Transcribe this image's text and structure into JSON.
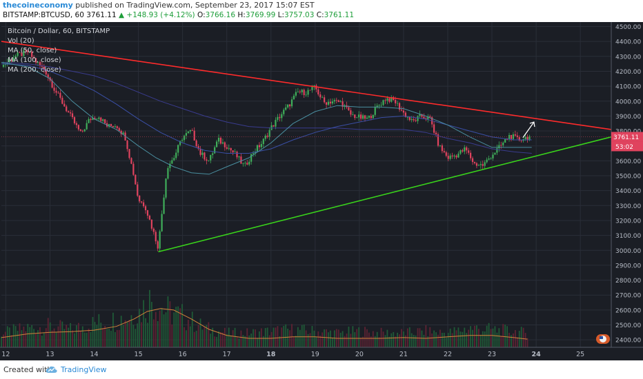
{
  "header": {
    "author": "thecoineconomy",
    "published": "published on TradingView.com, September 23, 2017 15:07 EST",
    "symbol": "BITSTAMP:BTCUSD, 60",
    "last": "3761.11",
    "change": "▲ +148.93 (+4.12%)",
    "o_label": "O:",
    "o": "3766.16",
    "h_label": "H:",
    "h": "3769.99",
    "l_label": "L:",
    "l": "3757.03",
    "c_label": "C:",
    "c": "3761.11"
  },
  "legend": [
    "Bitcoin / Dollar, 60, BITSTAMP",
    "Vol (20)",
    "MA (50, close)",
    "MA (100, close)",
    "MA (200, close)"
  ],
  "price_tag": {
    "value": "3761.11",
    "countdown": "53:02"
  },
  "footer": {
    "created": "Created with",
    "brand": "TradingView"
  },
  "colors": {
    "background": "#1b1e25",
    "up": "#3fae5a",
    "down": "#e0435e",
    "resistance": "#ff2b2b",
    "support": "#39d31b",
    "ma50": "#4a8fa0",
    "ma100": "#3a4fa6",
    "ma200": "#3a3c8f",
    "vol_ma": "#d2823a"
  },
  "chart_data": {
    "type": "candlestick",
    "ylabels": [
      "4500.00",
      "4400.00",
      "4300.00",
      "4200.00",
      "4100.00",
      "4000.00",
      "3900.00",
      "3800.00",
      "3700.00",
      "3600.00",
      "3500.00",
      "3400.00",
      "3300.00",
      "3200.00",
      "3100.00",
      "3000.00",
      "2900.00",
      "2800.00",
      "2700.00",
      "2600.00",
      "2500.00",
      "2400.00"
    ],
    "ylim": [
      2350,
      4530
    ],
    "xlabels": [
      "12",
      "13",
      "14",
      "15",
      "16",
      "17",
      "18",
      "19",
      "20",
      "21",
      "22",
      "23",
      "24",
      "25"
    ],
    "close_path": [
      [
        11.9,
        4230
      ],
      [
        12.2,
        4300
      ],
      [
        12.5,
        4330
      ],
      [
        12.7,
        4260
      ],
      [
        12.9,
        4200
      ],
      [
        13.1,
        4080
      ],
      [
        13.3,
        3980
      ],
      [
        13.5,
        3880
      ],
      [
        13.7,
        3780
      ],
      [
        13.9,
        3880
      ],
      [
        14.1,
        3900
      ],
      [
        14.3,
        3830
      ],
      [
        14.5,
        3840
      ],
      [
        14.7,
        3760
      ],
      [
        14.9,
        3500
      ],
      [
        15.0,
        3340
      ],
      [
        15.15,
        3300
      ],
      [
        15.3,
        3160
      ],
      [
        15.45,
        3020
      ],
      [
        15.55,
        3300
      ],
      [
        15.65,
        3560
      ],
      [
        15.8,
        3620
      ],
      [
        16.0,
        3760
      ],
      [
        16.2,
        3800
      ],
      [
        16.4,
        3650
      ],
      [
        16.6,
        3600
      ],
      [
        16.8,
        3740
      ],
      [
        17.0,
        3700
      ],
      [
        17.2,
        3640
      ],
      [
        17.4,
        3560
      ],
      [
        17.6,
        3660
      ],
      [
        17.8,
        3720
      ],
      [
        18.0,
        3820
      ],
      [
        18.2,
        3900
      ],
      [
        18.4,
        3970
      ],
      [
        18.6,
        4060
      ],
      [
        18.8,
        4060
      ],
      [
        19.0,
        4090
      ],
      [
        19.2,
        3990
      ],
      [
        19.4,
        4000
      ],
      [
        19.6,
        3990
      ],
      [
        19.8,
        3910
      ],
      [
        20.0,
        3890
      ],
      [
        20.2,
        3880
      ],
      [
        20.4,
        3960
      ],
      [
        20.6,
        4020
      ],
      [
        20.8,
        4000
      ],
      [
        21.0,
        3920
      ],
      [
        21.2,
        3860
      ],
      [
        21.4,
        3900
      ],
      [
        21.6,
        3880
      ],
      [
        21.8,
        3700
      ],
      [
        22.0,
        3620
      ],
      [
        22.2,
        3640
      ],
      [
        22.4,
        3680
      ],
      [
        22.6,
        3580
      ],
      [
        22.8,
        3570
      ],
      [
        23.0,
        3640
      ],
      [
        23.2,
        3700
      ],
      [
        23.4,
        3770
      ],
      [
        23.6,
        3740
      ],
      [
        23.8,
        3761
      ]
    ],
    "volume_path": [
      [
        11.9,
        2440
      ],
      [
        12.5,
        2470
      ],
      [
        13.0,
        2480
      ],
      [
        13.5,
        2460
      ],
      [
        14.0,
        2500
      ],
      [
        14.5,
        2520
      ],
      [
        15.0,
        2560
      ],
      [
        15.3,
        2650
      ],
      [
        15.6,
        2580
      ],
      [
        16.0,
        2540
      ],
      [
        16.5,
        2470
      ],
      [
        17.0,
        2440
      ],
      [
        17.5,
        2440
      ],
      [
        18.0,
        2450
      ],
      [
        18.5,
        2460
      ],
      [
        19.0,
        2450
      ],
      [
        19.5,
        2440
      ],
      [
        20.0,
        2450
      ],
      [
        20.5,
        2440
      ],
      [
        21.0,
        2440
      ],
      [
        21.5,
        2450
      ],
      [
        22.0,
        2440
      ],
      [
        22.5,
        2470
      ],
      [
        23.0,
        2460
      ],
      [
        23.5,
        2450
      ],
      [
        23.8,
        2440
      ]
    ],
    "volume_ma": [
      [
        11.9,
        2415
      ],
      [
        12.5,
        2440
      ],
      [
        13.0,
        2450
      ],
      [
        13.5,
        2455
      ],
      [
        14.0,
        2465
      ],
      [
        14.5,
        2490
      ],
      [
        14.9,
        2540
      ],
      [
        15.2,
        2590
      ],
      [
        15.5,
        2610
      ],
      [
        15.8,
        2600
      ],
      [
        16.2,
        2540
      ],
      [
        16.6,
        2470
      ],
      [
        17.0,
        2430
      ],
      [
        17.5,
        2410
      ],
      [
        18.0,
        2410
      ],
      [
        18.5,
        2420
      ],
      [
        19.0,
        2420
      ],
      [
        19.5,
        2410
      ],
      [
        20.0,
        2410
      ],
      [
        20.5,
        2410
      ],
      [
        21.0,
        2415
      ],
      [
        21.5,
        2410
      ],
      [
        22.0,
        2420
      ],
      [
        22.5,
        2430
      ],
      [
        23.0,
        2430
      ],
      [
        23.5,
        2415
      ],
      [
        23.8,
        2405
      ]
    ],
    "ma50": [
      [
        11.9,
        4260
      ],
      [
        12.5,
        4230
      ],
      [
        13.0,
        4150
      ],
      [
        13.5,
        4000
      ],
      [
        14.0,
        3880
      ],
      [
        14.5,
        3810
      ],
      [
        15.0,
        3700
      ],
      [
        15.4,
        3620
      ],
      [
        15.8,
        3560
      ],
      [
        16.2,
        3520
      ],
      [
        16.6,
        3510
      ],
      [
        17.0,
        3560
      ],
      [
        17.5,
        3620
      ],
      [
        18.0,
        3720
      ],
      [
        18.5,
        3850
      ],
      [
        19.0,
        3930
      ],
      [
        19.5,
        3970
      ],
      [
        20.0,
        3960
      ],
      [
        20.5,
        3960
      ],
      [
        21.0,
        3950
      ],
      [
        21.5,
        3900
      ],
      [
        22.0,
        3840
      ],
      [
        22.5,
        3760
      ],
      [
        23.0,
        3690
      ],
      [
        23.5,
        3690
      ],
      [
        23.9,
        3690
      ]
    ],
    "ma100": [
      [
        11.9,
        4250
      ],
      [
        12.5,
        4240
      ],
      [
        13.0,
        4200
      ],
      [
        13.5,
        4140
      ],
      [
        14.0,
        4070
      ],
      [
        14.5,
        3980
      ],
      [
        15.0,
        3880
      ],
      [
        15.5,
        3790
      ],
      [
        16.0,
        3720
      ],
      [
        16.5,
        3670
      ],
      [
        17.0,
        3650
      ],
      [
        17.5,
        3650
      ],
      [
        18.0,
        3680
      ],
      [
        18.5,
        3740
      ],
      [
        19.0,
        3790
      ],
      [
        19.5,
        3830
      ],
      [
        20.0,
        3860
      ],
      [
        20.5,
        3890
      ],
      [
        21.0,
        3900
      ],
      [
        21.5,
        3880
      ],
      [
        22.0,
        3840
      ],
      [
        22.5,
        3800
      ],
      [
        23.0,
        3760
      ],
      [
        23.5,
        3740
      ],
      [
        23.9,
        3740
      ]
    ],
    "ma200": [
      [
        11.9,
        4260
      ],
      [
        12.5,
        4250
      ],
      [
        13.0,
        4230
      ],
      [
        13.5,
        4200
      ],
      [
        14.0,
        4170
      ],
      [
        14.5,
        4120
      ],
      [
        15.0,
        4060
      ],
      [
        15.5,
        4000
      ],
      [
        16.0,
        3950
      ],
      [
        16.5,
        3900
      ],
      [
        17.0,
        3860
      ],
      [
        17.5,
        3830
      ],
      [
        18.0,
        3820
      ],
      [
        18.5,
        3820
      ],
      [
        19.0,
        3820
      ],
      [
        19.5,
        3820
      ],
      [
        20.0,
        3810
      ],
      [
        20.5,
        3810
      ],
      [
        21.0,
        3810
      ],
      [
        21.5,
        3790
      ],
      [
        22.0,
        3750
      ],
      [
        22.5,
        3720
      ],
      [
        23.0,
        3680
      ],
      [
        23.5,
        3660
      ],
      [
        23.9,
        3650
      ]
    ],
    "resistance_line": [
      [
        11.9,
        4400
      ],
      [
        25.7,
        3810
      ]
    ],
    "support_line": [
      [
        15.45,
        2990
      ],
      [
        25.7,
        3760
      ]
    ],
    "projection_arrow": [
      [
        23.7,
        3755
      ],
      [
        23.95,
        3860
      ]
    ]
  }
}
